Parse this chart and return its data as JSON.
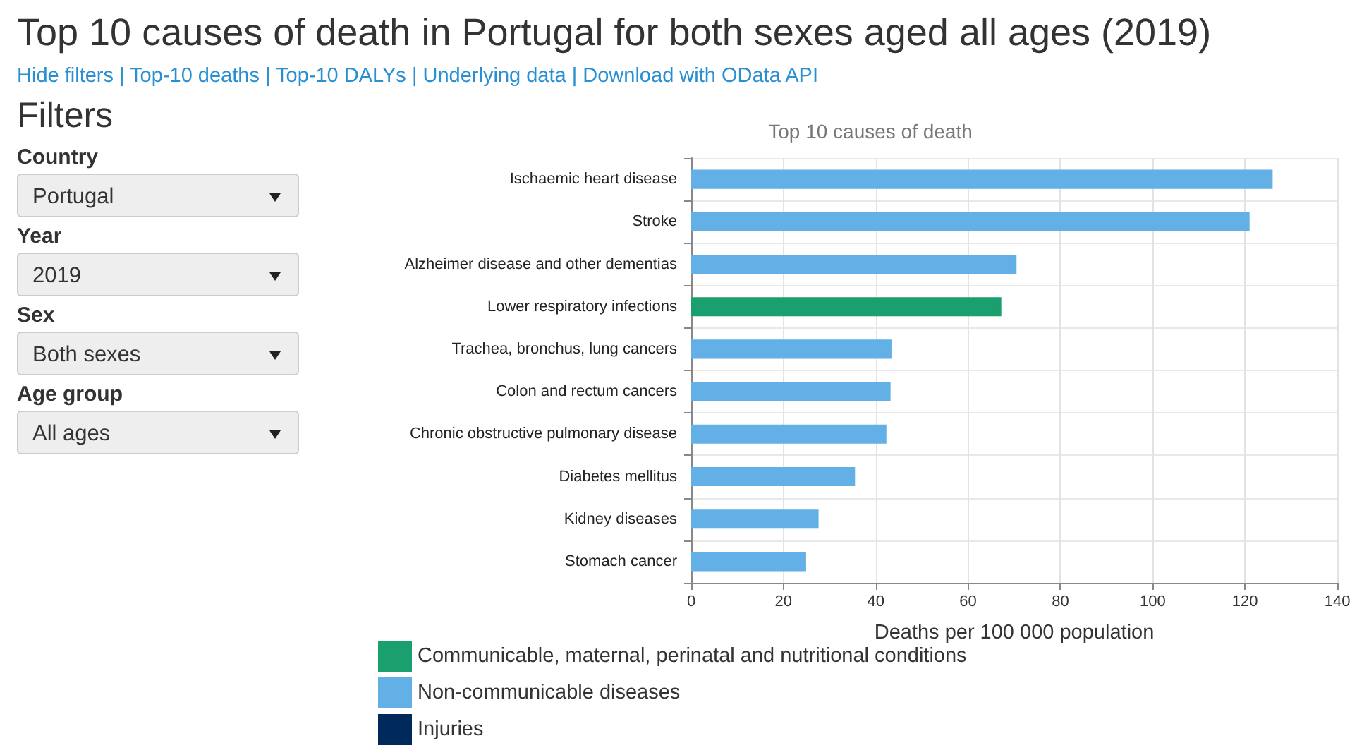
{
  "chart_data": {
    "type": "bar",
    "orientation": "horizontal",
    "stacked": true,
    "title": "Top 10 causes of death in Portugal for both sexes aged all ages (2019)",
    "subtitle": "Hide filters | Top-10 deaths | Top-10 DALYs | Underlying data | Download with OData API",
    "annotations": [
      "Top 10 causes of death",
      "Filters",
      "Country",
      "Portugal",
      "Year",
      "2019",
      "Sex",
      "Both sexes",
      "Age group",
      "All ages"
    ],
    "xlabel": "Deaths per 100 000 population",
    "categories": [
      "Ischaemic heart disease",
      "Stroke",
      "Alzheimer disease and other dementias",
      "Lower respiratory infections",
      "Trachea, bronchus, lung cancers",
      "Colon and rectum cancers",
      "Chronic obstructive pulmonary disease",
      "Diabetes mellitus",
      "Kidney diseases",
      "Stomach cancer"
    ],
    "series": [
      {
        "name": "Communicable, maternal, perinatal and nutritional conditions",
        "color": "#1a9f6e",
        "values": [
          null,
          null,
          null,
          67.2,
          null,
          null,
          null,
          null,
          null,
          null
        ]
      },
      {
        "name": "Non-communicable diseases",
        "color": "#62b0e6",
        "values": [
          126.0,
          121.0,
          70.5,
          null,
          43.4,
          43.2,
          42.3,
          35.5,
          27.6,
          24.9
        ]
      },
      {
        "name": "Injuries",
        "color": "#012a5c",
        "values": [
          null,
          null,
          null,
          null,
          null,
          null,
          null,
          null,
          null,
          null
        ]
      }
    ],
    "xlim": [
      0,
      140
    ],
    "xticks": [
      0,
      20,
      40,
      60,
      80,
      100,
      120,
      140
    ],
    "grid": true,
    "legend": "bottom left"
  }
}
